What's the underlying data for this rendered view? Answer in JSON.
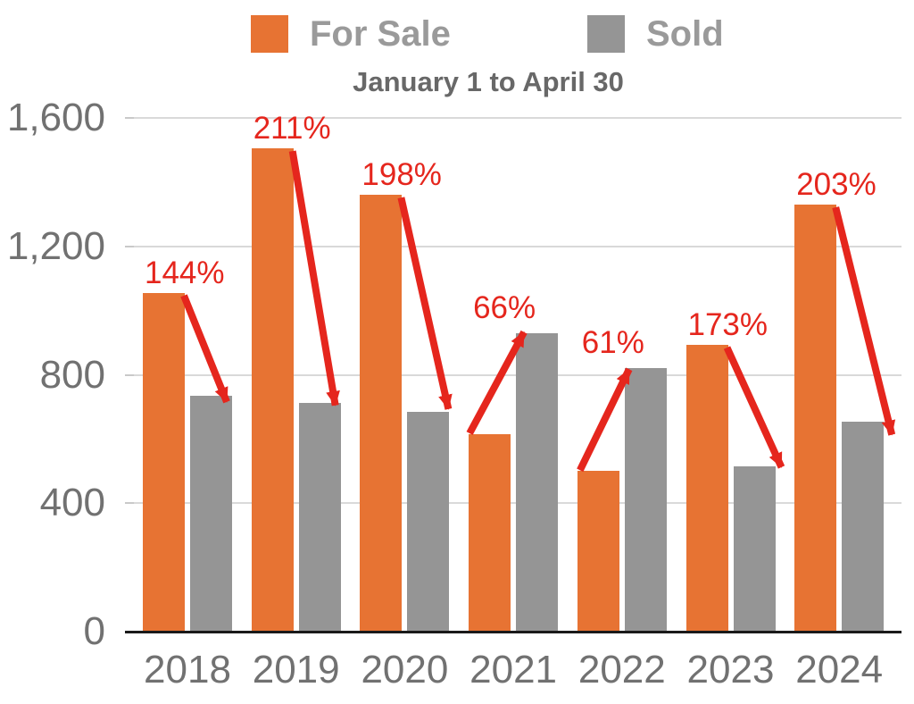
{
  "subtitle": "January 1 to April 30",
  "chart_data": {
    "type": "bar",
    "title": "",
    "subtitle": "January 1 to April 30",
    "xlabel": "",
    "ylabel": "",
    "categories": [
      "2018",
      "2019",
      "2020",
      "2021",
      "2022",
      "2023",
      "2024"
    ],
    "series": [
      {
        "name": "For Sale",
        "color": "#E77333",
        "values": [
          1055,
          1505,
          1360,
          615,
          500,
          893,
          1330
        ]
      },
      {
        "name": "Sold",
        "color": "#959595",
        "values": [
          735,
          713,
          685,
          930,
          820,
          515,
          655
        ]
      }
    ],
    "annotations": [
      {
        "category": "2018",
        "label": "144%",
        "direction": "down"
      },
      {
        "category": "2019",
        "label": "211%",
        "direction": "down"
      },
      {
        "category": "2020",
        "label": "198%",
        "direction": "down"
      },
      {
        "category": "2021",
        "label": "66%",
        "direction": "up"
      },
      {
        "category": "2022",
        "label": "61%",
        "direction": "up"
      },
      {
        "category": "2023",
        "label": "173%",
        "direction": "down"
      },
      {
        "category": "2024",
        "label": "203%",
        "direction": "down"
      }
    ],
    "annotation_color": "#E5261D",
    "y_ticks": [
      {
        "value": 0,
        "label": "0"
      },
      {
        "value": 400,
        "label": "400"
      },
      {
        "value": 800,
        "label": "800"
      },
      {
        "value": 1200,
        "label": "1,200"
      },
      {
        "value": 1600,
        "label": "1,600"
      }
    ],
    "ylim": [
      0,
      1600
    ],
    "grid": true,
    "legend_position": "top"
  },
  "colors": {
    "for_sale": "#E77333",
    "sold": "#959595",
    "annotation_red": "#E5261D",
    "axis_text": "#717171",
    "legend_text": "#9A9A9A",
    "subtitle_text": "#686868",
    "gridline": "#D9D9D9",
    "baseline": "#1A1A1A",
    "background": "#FFFFFF"
  }
}
